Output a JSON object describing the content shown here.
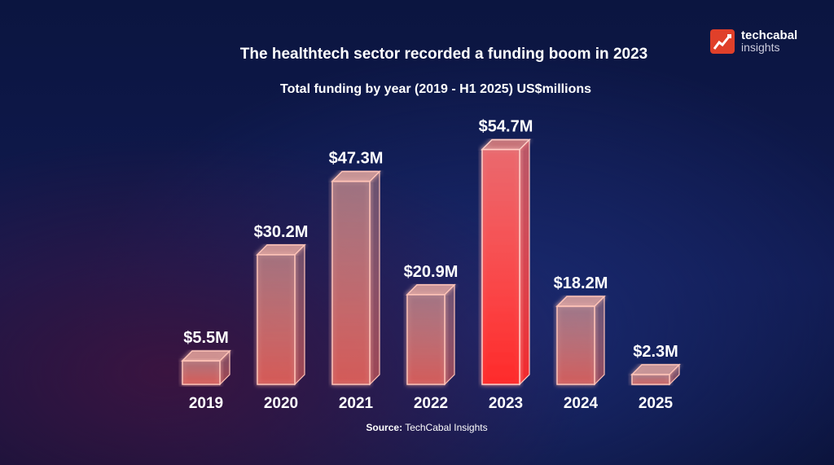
{
  "logo": {
    "line1": "techcabal",
    "line2": "insights"
  },
  "chart_data": {
    "type": "bar",
    "title": "The healthtech sector recorded a funding boom in 2023",
    "subtitle": "Total funding by year (2019 - H1 2025) US$millions",
    "categories": [
      "2019",
      "2020",
      "2021",
      "2022",
      "2023",
      "2024",
      "2025"
    ],
    "values": [
      5.5,
      30.2,
      47.3,
      20.9,
      54.7,
      18.2,
      2.3
    ],
    "data_labels": [
      "$5.5M",
      "$30.2M",
      "$47.3M",
      "$20.9M",
      "$54.7M",
      "$18.2M",
      "$2.3M"
    ],
    "highlight": "2023",
    "xlabel": "",
    "ylabel": "US$ millions",
    "ylim": [
      0,
      55
    ],
    "grid": false
  },
  "source": {
    "label": "Source:",
    "text": "TechCabal Insights"
  },
  "colors": {
    "bar": "#ff9a88",
    "highlight": "#ff3b3b",
    "logo": "#e0402a"
  }
}
